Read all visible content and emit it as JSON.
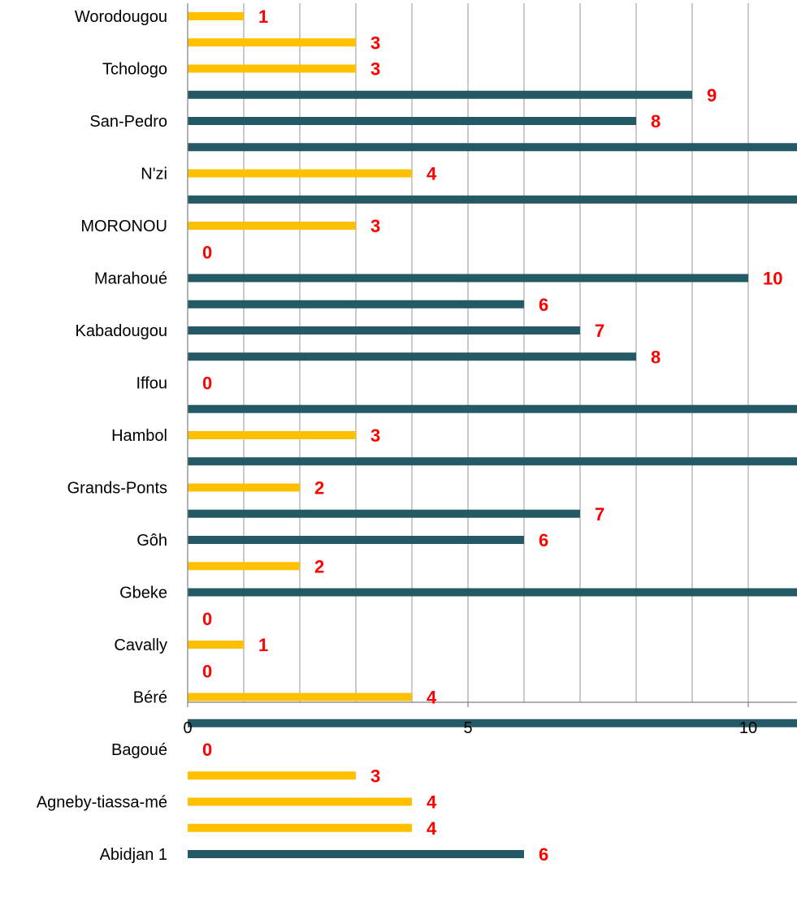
{
  "chart_data": {
    "type": "bar",
    "orientation": "horizontal",
    "title": "",
    "xlabel": "",
    "ylabel": "",
    "xlim": [
      0,
      10.76
    ],
    "x_ticks": [
      0,
      5,
      10
    ],
    "x_minor_gridlines": [
      1,
      2,
      3,
      4,
      5,
      6,
      7,
      8,
      9,
      10
    ],
    "grid": true,
    "legend": "none",
    "colors": {
      "yellow": "#FFC000",
      "teal": "#245A66",
      "label": "#FF0000",
      "grid": "#A6A6A6",
      "axis": "#808080"
    },
    "category_labels": [
      "Worodougou",
      "Tchologo",
      "San-Pedro",
      "N'zi",
      "MORONOU",
      "Marahoué",
      "Kabadougou",
      "Iffou",
      "Hambol",
      "Grands-Ponts",
      "Gôh",
      "Gbeke",
      "Cavally",
      "Béré",
      "Bagoué",
      "Agneby-tiassa-mé",
      "Abidjan 1"
    ],
    "bars": [
      {
        "row": 0,
        "value": 1,
        "color": "yellow",
        "label": "1"
      },
      {
        "row": 1,
        "value": 3,
        "color": "yellow",
        "label": "3"
      },
      {
        "row": 2,
        "value": 3,
        "color": "yellow",
        "label": "3"
      },
      {
        "row": 3,
        "value": 9,
        "color": "teal",
        "label": "9"
      },
      {
        "row": 4,
        "value": 8,
        "color": "teal",
        "label": "8"
      },
      {
        "row": 5,
        "value": 12,
        "color": "teal",
        "label": ""
      },
      {
        "row": 6,
        "value": 4,
        "color": "yellow",
        "label": "4"
      },
      {
        "row": 7,
        "value": 12,
        "color": "teal",
        "label": ""
      },
      {
        "row": 8,
        "value": 3,
        "color": "yellow",
        "label": "3"
      },
      {
        "row": 9,
        "value": 0,
        "color": "yellow",
        "label": "0"
      },
      {
        "row": 10,
        "value": 10,
        "color": "teal",
        "label": "10"
      },
      {
        "row": 11,
        "value": 6,
        "color": "teal",
        "label": "6"
      },
      {
        "row": 12,
        "value": 7,
        "color": "teal",
        "label": "7"
      },
      {
        "row": 13,
        "value": 8,
        "color": "teal",
        "label": "8"
      },
      {
        "row": 14,
        "value": 0,
        "color": "yellow",
        "label": "0"
      },
      {
        "row": 15,
        "value": 12,
        "color": "teal",
        "label": ""
      },
      {
        "row": 16,
        "value": 3,
        "color": "yellow",
        "label": "3"
      },
      {
        "row": 17,
        "value": 12,
        "color": "teal",
        "label": ""
      },
      {
        "row": 18,
        "value": 2,
        "color": "yellow",
        "label": "2"
      },
      {
        "row": 19,
        "value": 7,
        "color": "teal",
        "label": "7"
      },
      {
        "row": 20,
        "value": 6,
        "color": "teal",
        "label": "6"
      },
      {
        "row": 21,
        "value": 2,
        "color": "yellow",
        "label": "2"
      },
      {
        "row": 22,
        "value": 12,
        "color": "teal",
        "label": ""
      },
      {
        "row": 23,
        "value": 0,
        "color": "yellow",
        "label": "0"
      },
      {
        "row": 24,
        "value": 1,
        "color": "yellow",
        "label": "1"
      },
      {
        "row": 25,
        "value": 0,
        "color": "yellow",
        "label": "0"
      },
      {
        "row": 26,
        "value": 4,
        "color": "yellow",
        "label": "4"
      },
      {
        "row": 27,
        "value": 12,
        "color": "teal",
        "label": ""
      },
      {
        "row": 28,
        "value": 0,
        "color": "yellow",
        "label": "0"
      },
      {
        "row": 29,
        "value": 3,
        "color": "yellow",
        "label": "3"
      },
      {
        "row": 30,
        "value": 4,
        "color": "yellow",
        "label": "4"
      },
      {
        "row": 31,
        "value": 4,
        "color": "yellow",
        "label": "4"
      },
      {
        "row": 32,
        "value": 6,
        "color": "teal",
        "label": "6"
      }
    ]
  }
}
